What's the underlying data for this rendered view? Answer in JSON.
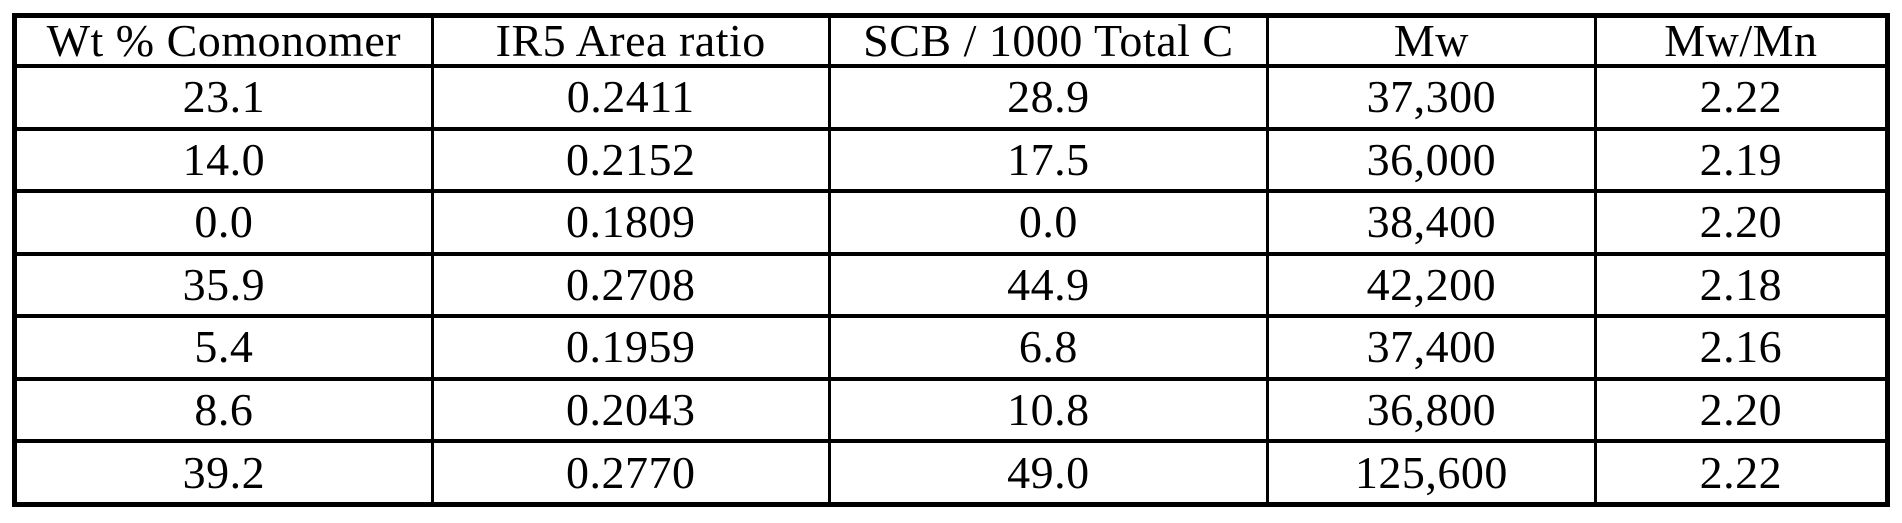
{
  "table": {
    "columns": [
      "Wt % Comonomer",
      "IR5 Area ratio",
      "SCB / 1000 Total C",
      "Mw",
      "Mw/Mn"
    ],
    "rows": [
      [
        "23.1",
        "0.2411",
        "28.9",
        "37,300",
        "2.22"
      ],
      [
        "14.0",
        "0.2152",
        "17.5",
        "36,000",
        "2.19"
      ],
      [
        "0.0",
        "0.1809",
        "0.0",
        "38,400",
        "2.20"
      ],
      [
        "35.9",
        "0.2708",
        "44.9",
        "42,200",
        "2.18"
      ],
      [
        "5.4",
        "0.1959",
        "6.8",
        "37,400",
        "2.16"
      ],
      [
        "8.6",
        "0.2043",
        "10.8",
        "36,800",
        "2.20"
      ],
      [
        "39.2",
        "0.2770",
        "49.0",
        "125,600",
        "2.22"
      ]
    ]
  },
  "chart_data": {
    "type": "table",
    "columns": [
      "Wt % Comonomer",
      "IR5 Area ratio",
      "SCB / 1000 Total C",
      "Mw",
      "Mw/Mn"
    ],
    "rows": [
      [
        23.1,
        0.2411,
        28.9,
        37300,
        2.22
      ],
      [
        14.0,
        0.2152,
        17.5,
        36000,
        2.19
      ],
      [
        0.0,
        0.1809,
        0.0,
        38400,
        2.2
      ],
      [
        35.9,
        0.2708,
        44.9,
        42200,
        2.18
      ],
      [
        5.4,
        0.1959,
        6.8,
        37400,
        2.16
      ],
      [
        8.6,
        0.2043,
        10.8,
        36800,
        2.2
      ],
      [
        39.2,
        0.277,
        49.0,
        125600,
        2.22
      ]
    ],
    "title": "",
    "colors": {
      "border": "#000000",
      "text": "#000000",
      "background": "#ffffff"
    }
  }
}
